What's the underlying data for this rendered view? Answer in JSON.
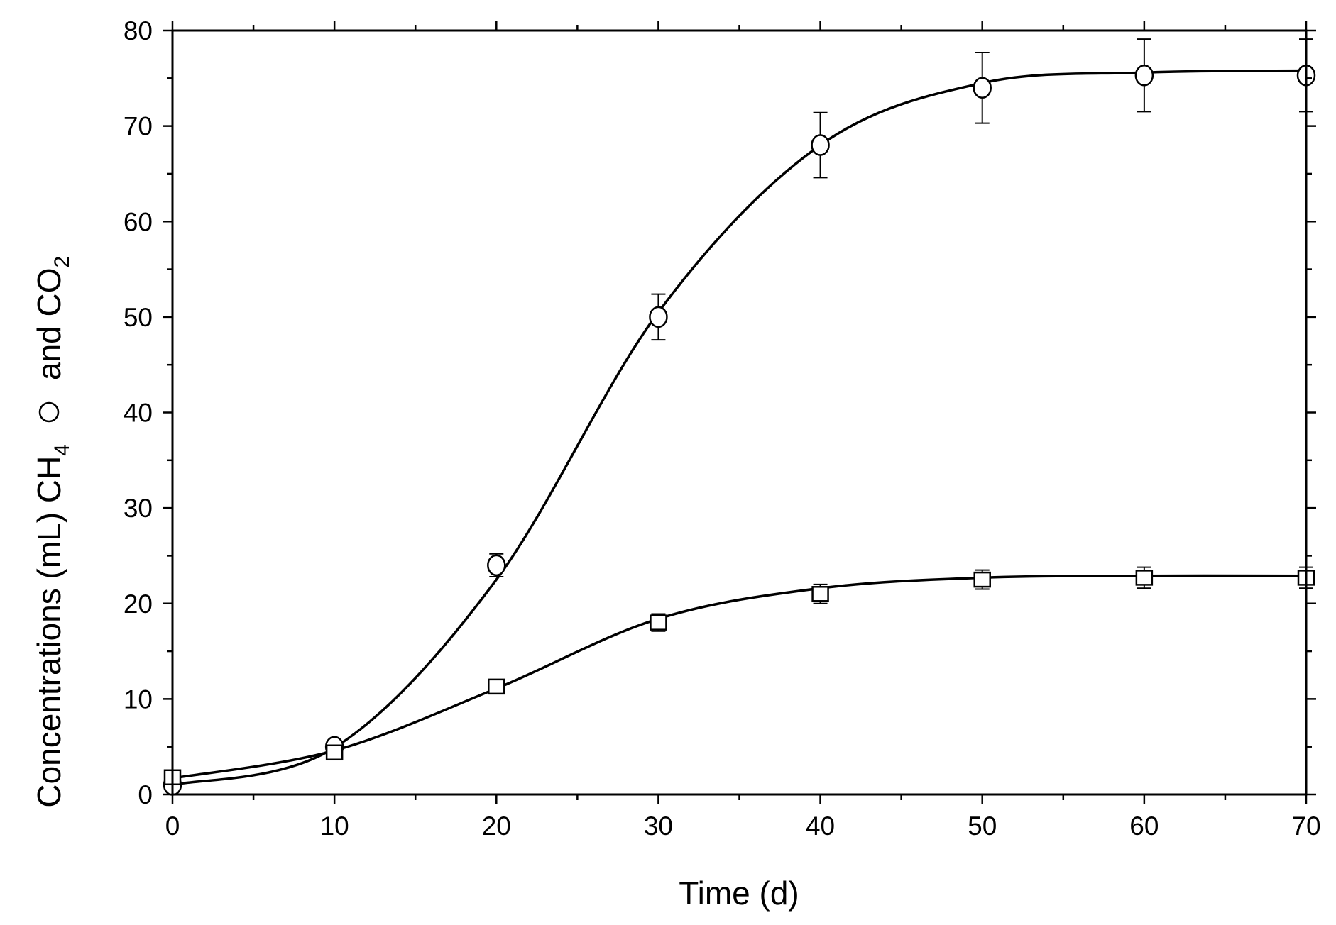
{
  "chart_data": {
    "type": "scatter",
    "xlabel": "Time (d)",
    "ylabel": {
      "part1": "Concentrations (mL) CH",
      "part1_sub": "4",
      "part2": "and CO",
      "part2_sub": "2"
    },
    "xlim": [
      0,
      70
    ],
    "ylim": [
      0,
      80
    ],
    "x_ticks": [
      0,
      10,
      20,
      30,
      40,
      50,
      60,
      70
    ],
    "y_ticks": [
      0,
      10,
      20,
      30,
      40,
      50,
      60,
      70,
      80
    ],
    "x_minor_step": 5,
    "y_minor_step": 5,
    "grid": false,
    "series": [
      {
        "marker": "circle",
        "x": [
          0,
          10,
          20,
          30,
          40,
          50,
          60,
          70
        ],
        "y": [
          1.0,
          5.0,
          24.0,
          50.0,
          68.0,
          74.0,
          75.3,
          75.3
        ],
        "error": [
          0.3,
          0.4,
          1.2,
          2.4,
          3.4,
          3.7,
          3.8,
          3.8
        ],
        "fit_y": [
          1.0,
          4.9,
          22.5,
          50.5,
          68.0,
          74.5,
          75.6,
          75.8
        ]
      },
      {
        "marker": "square",
        "x": [
          0,
          10,
          20,
          30,
          40,
          50,
          60,
          70
        ],
        "y": [
          1.8,
          4.4,
          11.3,
          18.0,
          21.0,
          22.5,
          22.7,
          22.7
        ],
        "error": [
          0.3,
          0.4,
          0.5,
          0.9,
          1.0,
          1.0,
          1.1,
          1.1
        ],
        "fit_y": [
          1.7,
          4.6,
          11.1,
          18.4,
          21.6,
          22.7,
          22.9,
          22.9
        ]
      }
    ]
  }
}
